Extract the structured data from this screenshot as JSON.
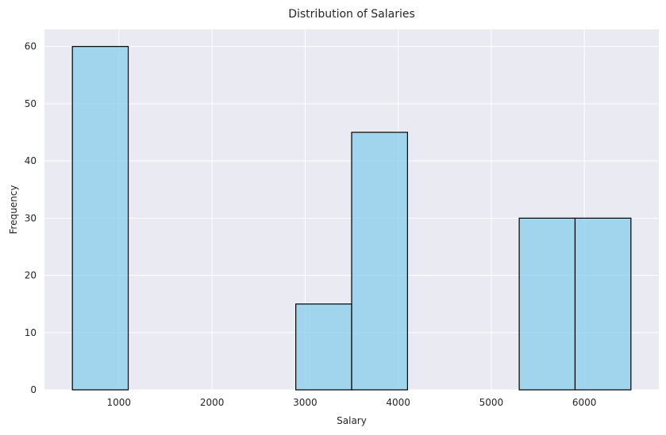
{
  "chart_data": {
    "type": "bar",
    "subtype": "histogram",
    "title": "Distribution of Salaries",
    "xlabel": "Salary",
    "ylabel": "Frequency",
    "xlim": [
      200,
      6800
    ],
    "ylim": [
      0,
      63
    ],
    "xticks": [
      1000,
      2000,
      3000,
      4000,
      5000,
      6000
    ],
    "yticks": [
      0,
      10,
      20,
      30,
      40,
      50,
      60
    ],
    "grid": true,
    "bins": [
      {
        "x0": 500,
        "x1": 1100,
        "count": 60
      },
      {
        "x0": 1100,
        "x1": 1700,
        "count": 0
      },
      {
        "x0": 1700,
        "x1": 2300,
        "count": 0
      },
      {
        "x0": 2300,
        "x1": 2900,
        "count": 0
      },
      {
        "x0": 2900,
        "x1": 3500,
        "count": 15
      },
      {
        "x0": 3500,
        "x1": 4100,
        "count": 45
      },
      {
        "x0": 4100,
        "x1": 4700,
        "count": 0
      },
      {
        "x0": 4700,
        "x1": 5300,
        "count": 0
      },
      {
        "x0": 5300,
        "x1": 5900,
        "count": 30
      },
      {
        "x0": 5900,
        "x1": 6500,
        "count": 30
      }
    ],
    "colors": {
      "bar_fill": "#87ceeb",
      "bar_edge": "#000000",
      "plot_background": "#eaeaf2",
      "grid": "#ffffff"
    }
  }
}
